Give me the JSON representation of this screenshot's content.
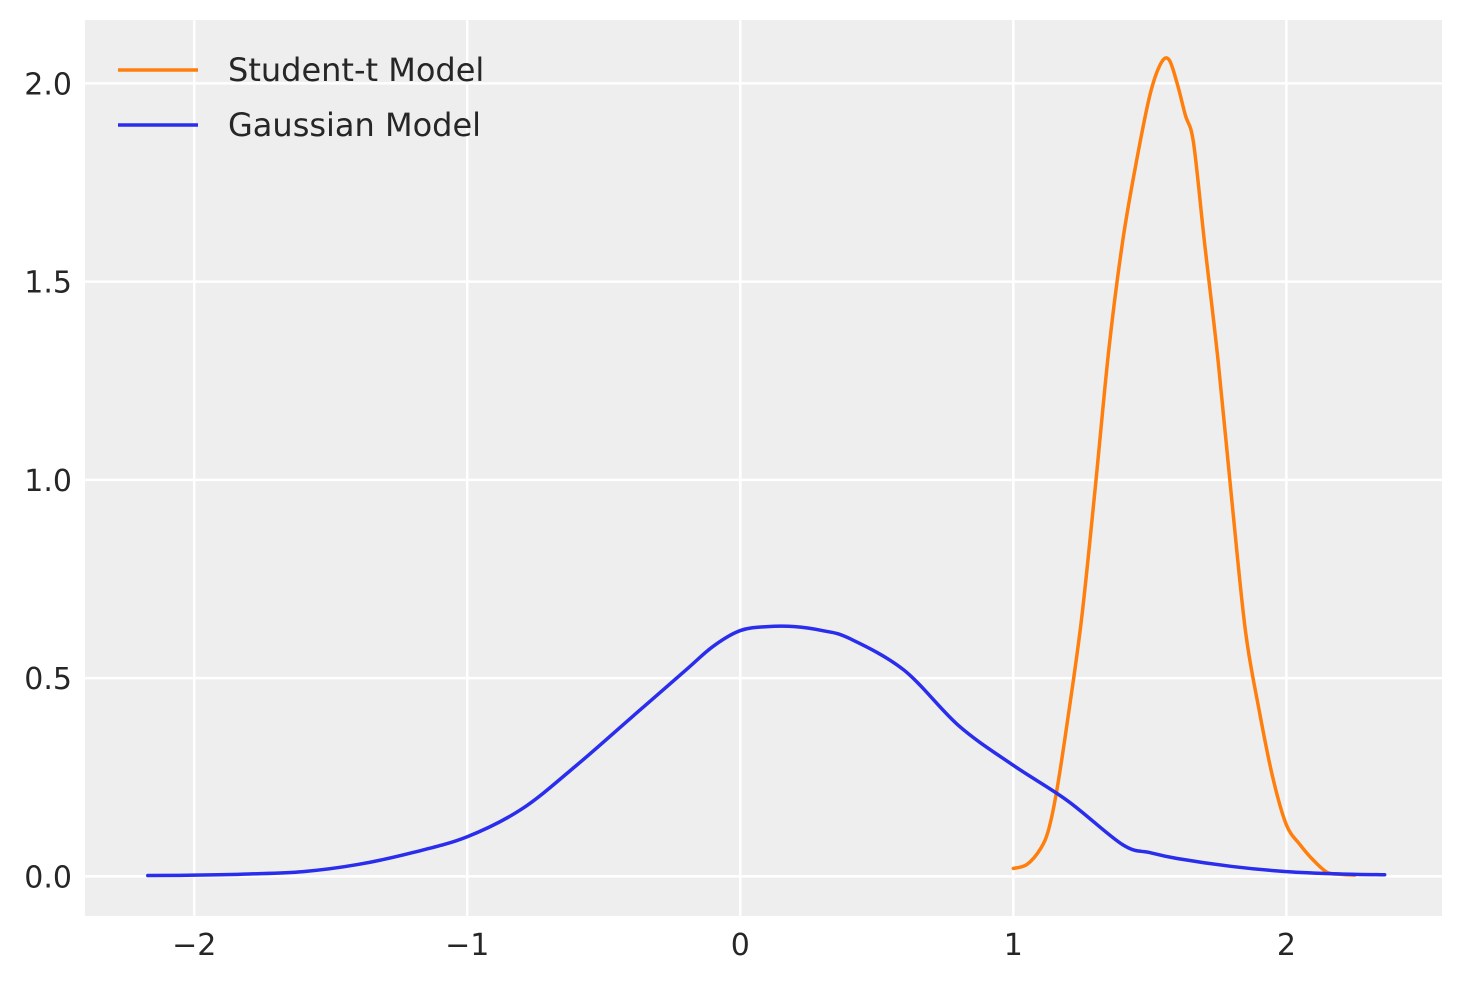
{
  "chart_data": {
    "type": "line",
    "title": "",
    "xlabel": "",
    "ylabel": "",
    "xlim": [
      -2.4,
      2.57
    ],
    "ylim": [
      -0.1,
      2.16
    ],
    "xticks": [
      -2,
      -1,
      0,
      1,
      2
    ],
    "xtick_labels": [
      "−2",
      "−1",
      "0",
      "1",
      "2"
    ],
    "yticks": [
      0.0,
      0.5,
      1.0,
      1.5,
      2.0
    ],
    "ytick_labels": [
      "0.0",
      "0.5",
      "1.0",
      "1.5",
      "2.0"
    ],
    "grid": true,
    "legend_position": "top-left",
    "background_color": "#eeeeee",
    "series": [
      {
        "name": "Student-t Model",
        "color": "#ff7f0e",
        "x": [
          1.0,
          1.05,
          1.1,
          1.13,
          1.16,
          1.2,
          1.25,
          1.3,
          1.35,
          1.4,
          1.45,
          1.5,
          1.54,
          1.57,
          1.6,
          1.63,
          1.66,
          1.7,
          1.75,
          1.8,
          1.85,
          1.9,
          1.95,
          2.0,
          2.05,
          2.1,
          2.15,
          2.2,
          2.25
        ],
        "y": [
          0.02,
          0.03,
          0.07,
          0.12,
          0.22,
          0.4,
          0.65,
          0.98,
          1.33,
          1.6,
          1.8,
          1.97,
          2.05,
          2.06,
          2.0,
          1.92,
          1.85,
          1.6,
          1.3,
          0.95,
          0.62,
          0.42,
          0.25,
          0.13,
          0.08,
          0.04,
          0.01,
          0.005,
          0.003
        ]
      },
      {
        "name": "Gaussian Model",
        "color": "#2a2eec",
        "x": [
          -2.17,
          -2.0,
          -1.8,
          -1.6,
          -1.4,
          -1.2,
          -1.0,
          -0.8,
          -0.6,
          -0.4,
          -0.2,
          -0.1,
          0.0,
          0.1,
          0.2,
          0.3,
          0.4,
          0.6,
          0.8,
          1.0,
          1.2,
          1.4,
          1.5,
          1.6,
          1.8,
          2.0,
          2.2,
          2.36
        ],
        "y": [
          0.002,
          0.003,
          0.006,
          0.012,
          0.03,
          0.06,
          0.1,
          0.17,
          0.28,
          0.4,
          0.52,
          0.58,
          0.62,
          0.63,
          0.63,
          0.62,
          0.6,
          0.52,
          0.38,
          0.28,
          0.19,
          0.08,
          0.06,
          0.045,
          0.025,
          0.012,
          0.006,
          0.004
        ]
      }
    ]
  }
}
